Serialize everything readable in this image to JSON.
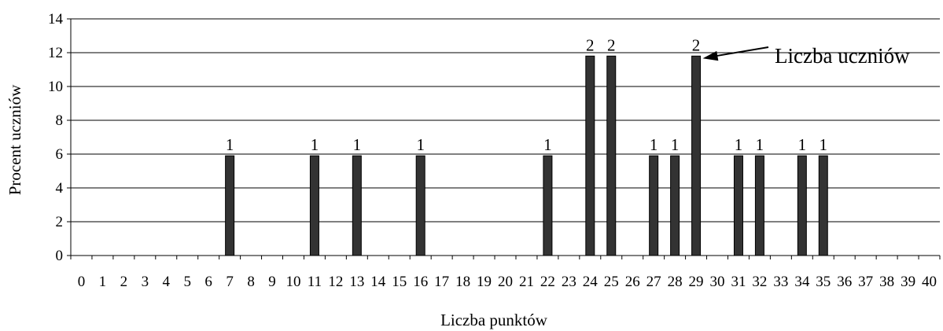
{
  "chart_data": {
    "type": "bar",
    "xlabel": "Liczba punktów",
    "ylabel": "Procent uczniów",
    "ylim": [
      0,
      14
    ],
    "yticks": [
      0,
      2,
      4,
      6,
      8,
      10,
      12,
      14
    ],
    "grid": true,
    "categories": [
      "0",
      "1",
      "2",
      "3",
      "4",
      "5",
      "6",
      "7",
      "8",
      "9",
      "10",
      "11",
      "12",
      "13",
      "14",
      "15",
      "16",
      "17",
      "18",
      "19",
      "20",
      "21",
      "22",
      "23",
      "24",
      "25",
      "26",
      "27",
      "28",
      "29",
      "30",
      "31",
      "32",
      "33",
      "34",
      "35",
      "36",
      "37",
      "38",
      "39",
      "40"
    ],
    "values": [
      0,
      0,
      0,
      0,
      0,
      0,
      0,
      5.9,
      0,
      0,
      0,
      5.9,
      0,
      5.9,
      0,
      0,
      5.9,
      0,
      0,
      0,
      0,
      0,
      5.9,
      0,
      11.8,
      11.8,
      0,
      5.9,
      5.9,
      11.8,
      0,
      5.9,
      5.9,
      0,
      5.9,
      5.9,
      0,
      0,
      0,
      0,
      0
    ],
    "data_labels": [
      "",
      "",
      "",
      "",
      "",
      "",
      "",
      "1",
      "",
      "",
      "",
      "1",
      "",
      "1",
      "",
      "",
      "1",
      "",
      "",
      "",
      "",
      "",
      "1",
      "",
      "2",
      "2",
      "",
      "1",
      "1",
      "2",
      "",
      "1",
      "1",
      "",
      "1",
      "1",
      "",
      "",
      "",
      "",
      ""
    ],
    "annotation": {
      "text": "Liczba uczniów",
      "points_to_category": "29"
    },
    "colors": {
      "bar": "#333333",
      "axis": "#000000",
      "grid": "#000000"
    }
  }
}
